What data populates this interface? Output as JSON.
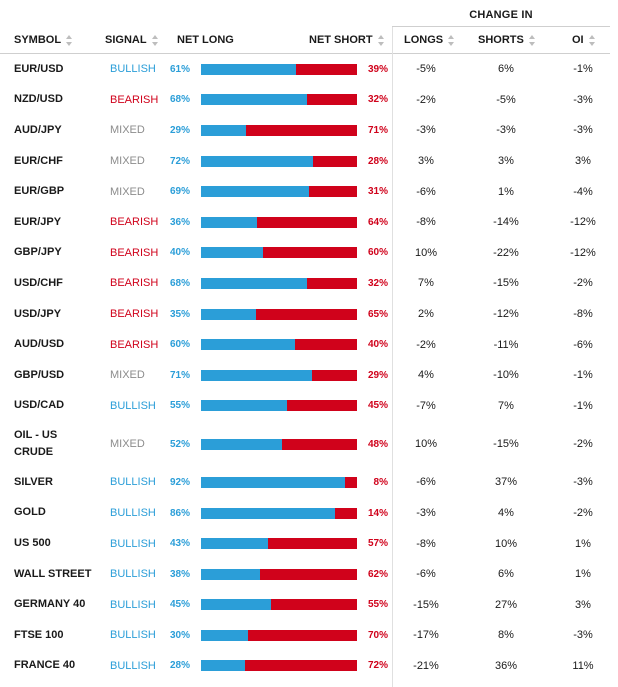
{
  "header": {
    "group_label": "CHANGE IN",
    "columns": {
      "symbol": "SYMBOL",
      "signal": "SIGNAL",
      "net_long": "NET LONG",
      "net_short": "NET SHORT",
      "longs": "LONGS",
      "shorts": "SHORTS",
      "oi": "OI"
    }
  },
  "colors": {
    "long": "#2b9ed8",
    "short": "#d0021b",
    "mixed": "#8c8c8c"
  },
  "rows": [
    {
      "symbol": "EUR/USD",
      "signal": "BULLISH",
      "net_long": "61%",
      "net_short": "39%",
      "longs": "-5%",
      "shorts": "6%",
      "oi": "-1%"
    },
    {
      "symbol": "NZD/USD",
      "signal": "BEARISH",
      "net_long": "68%",
      "net_short": "32%",
      "longs": "-2%",
      "shorts": "-5%",
      "oi": "-3%"
    },
    {
      "symbol": "AUD/JPY",
      "signal": "MIXED",
      "net_long": "29%",
      "net_short": "71%",
      "longs": "-3%",
      "shorts": "-3%",
      "oi": "-3%"
    },
    {
      "symbol": "EUR/CHF",
      "signal": "MIXED",
      "net_long": "72%",
      "net_short": "28%",
      "longs": "3%",
      "shorts": "3%",
      "oi": "3%"
    },
    {
      "symbol": "EUR/GBP",
      "signal": "MIXED",
      "net_long": "69%",
      "net_short": "31%",
      "longs": "-6%",
      "shorts": "1%",
      "oi": "-4%"
    },
    {
      "symbol": "EUR/JPY",
      "signal": "BEARISH",
      "net_long": "36%",
      "net_short": "64%",
      "longs": "-8%",
      "shorts": "-14%",
      "oi": "-12%"
    },
    {
      "symbol": "GBP/JPY",
      "signal": "BEARISH",
      "net_long": "40%",
      "net_short": "60%",
      "longs": "10%",
      "shorts": "-22%",
      "oi": "-12%"
    },
    {
      "symbol": "USD/CHF",
      "signal": "BEARISH",
      "net_long": "68%",
      "net_short": "32%",
      "longs": "7%",
      "shorts": "-15%",
      "oi": "-2%"
    },
    {
      "symbol": "USD/JPY",
      "signal": "BEARISH",
      "net_long": "35%",
      "net_short": "65%",
      "longs": "2%",
      "shorts": "-12%",
      "oi": "-8%"
    },
    {
      "symbol": "AUD/USD",
      "signal": "BEARISH",
      "net_long": "60%",
      "net_short": "40%",
      "longs": "-2%",
      "shorts": "-11%",
      "oi": "-6%"
    },
    {
      "symbol": "GBP/USD",
      "signal": "MIXED",
      "net_long": "71%",
      "net_short": "29%",
      "longs": "4%",
      "shorts": "-10%",
      "oi": "-1%"
    },
    {
      "symbol": "USD/CAD",
      "signal": "BULLISH",
      "net_long": "55%",
      "net_short": "45%",
      "longs": "-7%",
      "shorts": "7%",
      "oi": "-1%"
    },
    {
      "symbol": "OIL - US CRUDE",
      "signal": "MIXED",
      "net_long": "52%",
      "net_short": "48%",
      "longs": "10%",
      "shorts": "-15%",
      "oi": "-2%"
    },
    {
      "symbol": "SILVER",
      "signal": "BULLISH",
      "net_long": "92%",
      "net_short": "8%",
      "longs": "-6%",
      "shorts": "37%",
      "oi": "-3%"
    },
    {
      "symbol": "GOLD",
      "signal": "BULLISH",
      "net_long": "86%",
      "net_short": "14%",
      "longs": "-3%",
      "shorts": "4%",
      "oi": "-2%"
    },
    {
      "symbol": "US 500",
      "signal": "BULLISH",
      "net_long": "43%",
      "net_short": "57%",
      "longs": "-8%",
      "shorts": "10%",
      "oi": "1%"
    },
    {
      "symbol": "WALL STREET",
      "signal": "BULLISH",
      "net_long": "38%",
      "net_short": "62%",
      "longs": "-6%",
      "shorts": "6%",
      "oi": "1%"
    },
    {
      "symbol": "GERMANY 40",
      "signal": "BULLISH",
      "net_long": "45%",
      "net_short": "55%",
      "longs": "-15%",
      "shorts": "27%",
      "oi": "3%"
    },
    {
      "symbol": "FTSE 100",
      "signal": "BULLISH",
      "net_long": "30%",
      "net_short": "70%",
      "longs": "-17%",
      "shorts": "8%",
      "oi": "-3%"
    },
    {
      "symbol": "FRANCE 40",
      "signal": "BULLISH",
      "net_long": "28%",
      "net_short": "72%",
      "longs": "-21%",
      "shorts": "36%",
      "oi": "11%"
    }
  ]
}
